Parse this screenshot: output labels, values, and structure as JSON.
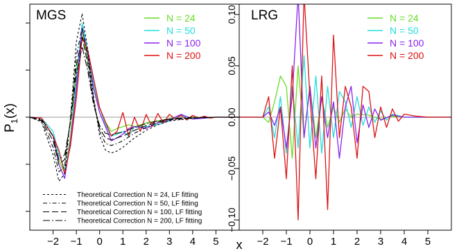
{
  "figure": {
    "ylabel": "P",
    "ylabel_sub": "1",
    "ylabel_tail": "(x)",
    "xlabel": "x"
  },
  "colors": {
    "N24": "#66dd22",
    "N50": "#22dddd",
    "N100": "#8822ee",
    "N200": "#dd1111",
    "theory": "#000000",
    "zero_line": "#999999"
  },
  "chart_data": [
    {
      "type": "line",
      "panel_label": "MGS",
      "xlim": [
        -3,
        6
      ],
      "x_ticks": [
        -2,
        -1,
        0,
        1,
        2,
        3,
        4,
        5
      ],
      "x_tick_labels": [
        "-2",
        "-1",
        "0",
        "1",
        "2",
        "3",
        "4",
        "5"
      ],
      "grid": false,
      "legend_position": "top-right",
      "series": [
        {
          "name": "N = 24",
          "color_key": "N24",
          "x": [
            -3.0,
            -2.5,
            -2.0,
            -1.75,
            -1.5,
            -1.25,
            -1.0,
            -0.75,
            -0.5,
            -0.25,
            0.0,
            0.25,
            0.5,
            0.75,
            1.0,
            1.25,
            1.5,
            2.0,
            2.5,
            3.0,
            3.5,
            4.0,
            5.0,
            6.0
          ],
          "y": [
            0.0,
            -0.001,
            -0.02,
            -0.045,
            -0.06,
            -0.02,
            0.05,
            0.09,
            0.06,
            0.03,
            0.01,
            -0.005,
            -0.015,
            -0.012,
            -0.01,
            -0.008,
            -0.01,
            -0.006,
            -0.004,
            -0.002,
            0.002,
            -0.001,
            0.0,
            0.0
          ]
        },
        {
          "name": "N = 50",
          "color_key": "N50",
          "x": [
            -3.0,
            -2.5,
            -2.0,
            -1.75,
            -1.5,
            -1.25,
            -1.0,
            -0.75,
            -0.5,
            -0.25,
            0.0,
            0.25,
            0.5,
            0.75,
            1.0,
            1.25,
            1.5,
            2.0,
            2.5,
            3.0,
            3.5,
            4.0,
            5.0,
            6.0
          ],
          "y": [
            0.0,
            -0.001,
            -0.015,
            -0.04,
            -0.055,
            -0.03,
            0.04,
            0.1,
            0.07,
            0.035,
            0.01,
            -0.008,
            -0.02,
            -0.018,
            -0.015,
            -0.02,
            -0.01,
            -0.01,
            -0.008,
            -0.004,
            0.002,
            -0.002,
            0.0,
            0.0
          ]
        },
        {
          "name": "N = 100",
          "color_key": "N100",
          "x": [
            -3.0,
            -2.5,
            -2.0,
            -1.75,
            -1.5,
            -1.25,
            -1.0,
            -0.75,
            -0.5,
            -0.25,
            0.0,
            0.25,
            0.5,
            0.75,
            1.0,
            1.25,
            1.5,
            2.0,
            2.5,
            3.0,
            3.5,
            4.0,
            5.0,
            6.0
          ],
          "y": [
            0.0,
            -0.001,
            -0.02,
            -0.05,
            -0.065,
            -0.025,
            0.03,
            0.095,
            0.065,
            0.03,
            0.005,
            -0.01,
            -0.025,
            -0.022,
            -0.018,
            -0.012,
            -0.01,
            -0.012,
            -0.006,
            -0.003,
            0.003,
            -0.002,
            0.0,
            0.0
          ]
        },
        {
          "name": "N = 200",
          "color_key": "N200",
          "x": [
            -3.0,
            -2.5,
            -2.0,
            -1.75,
            -1.5,
            -1.25,
            -1.0,
            -0.75,
            -0.5,
            -0.25,
            0.0,
            0.25,
            0.5,
            0.75,
            1.0,
            1.25,
            1.5,
            1.75,
            2.0,
            2.25,
            2.5,
            2.75,
            3.0,
            3.25,
            3.5,
            3.75,
            4.0,
            4.25,
            4.5,
            4.75,
            5.0,
            6.0
          ],
          "y": [
            0.0,
            -0.001,
            -0.02,
            -0.035,
            -0.06,
            -0.03,
            0.02,
            0.085,
            0.07,
            0.04,
            0.01,
            -0.005,
            -0.02,
            -0.015,
            0.005,
            -0.02,
            0.0,
            -0.015,
            0.003,
            -0.01,
            0.004,
            -0.006,
            0.003,
            -0.002,
            0.002,
            -0.003,
            0.002,
            -0.001,
            0.001,
            -0.001,
            0.0,
            0.0
          ]
        },
        {
          "name": "Theoretical Correction N = 24, LF fitting",
          "color_key": "theory",
          "dash": "short",
          "x": [
            -3.0,
            -2.5,
            -2.0,
            -1.75,
            -1.5,
            -1.25,
            -1.0,
            -0.75,
            -0.5,
            -0.25,
            0.0,
            0.25,
            0.5,
            0.75,
            1.0,
            1.5,
            2.0,
            2.5,
            3.0,
            4.0,
            5.0,
            6.0
          ],
          "y": [
            0.0,
            -0.005,
            -0.04,
            -0.068,
            -0.06,
            0.0,
            0.08,
            0.11,
            0.07,
            0.02,
            -0.02,
            -0.035,
            -0.038,
            -0.036,
            -0.032,
            -0.022,
            -0.014,
            -0.008,
            -0.004,
            -0.001,
            0.0,
            0.0
          ]
        },
        {
          "name": "Theoretical Correction N = 50, LF fitting",
          "color_key": "theory",
          "dash": "dashdot",
          "x": [
            -3.0,
            -2.5,
            -2.0,
            -1.75,
            -1.5,
            -1.25,
            -1.0,
            -0.75,
            -0.5,
            -0.25,
            0.0,
            0.25,
            0.5,
            0.75,
            1.0,
            1.5,
            2.0,
            2.5,
            3.0,
            4.0,
            5.0,
            6.0
          ],
          "y": [
            0.0,
            -0.004,
            -0.032,
            -0.058,
            -0.052,
            -0.002,
            0.065,
            0.095,
            0.062,
            0.018,
            -0.015,
            -0.028,
            -0.03,
            -0.028,
            -0.025,
            -0.017,
            -0.011,
            -0.006,
            -0.003,
            -0.001,
            0.0,
            0.0
          ]
        },
        {
          "name": "Theoretical Correction N = 100, LF fitting",
          "color_key": "theory",
          "dash": "long",
          "x": [
            -3.0,
            -2.5,
            -2.0,
            -1.75,
            -1.5,
            -1.25,
            -1.0,
            -0.75,
            -0.5,
            -0.25,
            0.0,
            0.25,
            0.5,
            0.75,
            1.0,
            1.5,
            2.0,
            2.5,
            3.0,
            4.0,
            5.0,
            6.0
          ],
          "y": [
            0.0,
            -0.003,
            -0.025,
            -0.05,
            -0.045,
            -0.004,
            0.055,
            0.085,
            0.055,
            0.015,
            -0.012,
            -0.022,
            -0.024,
            -0.022,
            -0.02,
            -0.014,
            -0.009,
            -0.005,
            -0.002,
            -0.001,
            0.0,
            0.0
          ]
        },
        {
          "name": "Theoretical Correction N = 200, LF fitting",
          "color_key": "theory",
          "dash": "longdashdot",
          "x": [
            -3.0,
            -2.5,
            -2.0,
            -1.75,
            -1.5,
            -1.25,
            -1.0,
            -0.75,
            -0.5,
            -0.25,
            0.0,
            0.25,
            0.5,
            0.75,
            1.0,
            1.5,
            2.0,
            2.5,
            3.0,
            4.0,
            5.0,
            6.0
          ],
          "y": [
            0.0,
            -0.002,
            -0.02,
            -0.045,
            -0.04,
            -0.005,
            0.045,
            0.075,
            0.048,
            0.012,
            -0.009,
            -0.017,
            -0.019,
            -0.017,
            -0.016,
            -0.011,
            -0.007,
            -0.004,
            -0.002,
            0.0,
            0.0,
            0.0
          ]
        }
      ],
      "ylim": [
        -0.12,
        0.12
      ]
    },
    {
      "type": "line",
      "panel_label": "LRG",
      "xlim": [
        -3,
        6
      ],
      "ylim": [
        -0.11,
        0.11
      ],
      "x_ticks": [
        -2,
        -1,
        0,
        1,
        2,
        3,
        4,
        5
      ],
      "x_tick_labels": [
        "-2",
        "-1",
        "0",
        "1",
        "2",
        "3",
        "4",
        "5"
      ],
      "y_ticks": [
        -0.1,
        -0.05,
        0.0,
        0.05,
        0.1
      ],
      "y_tick_labels": [
        "-0.10",
        "-0.05",
        "0.00",
        "0.05",
        "0.10"
      ],
      "grid": false,
      "legend_position": "top-right",
      "series": [
        {
          "name": "N = 24",
          "color_key": "N24",
          "x": [
            -3.0,
            -2.0,
            -1.75,
            -1.5,
            -1.25,
            -1.0,
            -0.75,
            -0.5,
            -0.25,
            0.0,
            0.25,
            0.5,
            0.75,
            1.0,
            1.25,
            1.5,
            1.75,
            2.0,
            2.5,
            3.0,
            3.5,
            4.0,
            5.0,
            6.0
          ],
          "y": [
            0.0,
            0.0,
            -0.005,
            0.015,
            0.04,
            0.03,
            -0.04,
            0.05,
            -0.02,
            0.03,
            -0.02,
            0.02,
            -0.01,
            0.01,
            -0.005,
            0.008,
            0.0,
            0.003,
            0.002,
            -0.002,
            0.001,
            0.0,
            0.0,
            0.0
          ]
        },
        {
          "name": "N = 50",
          "color_key": "N50",
          "x": [
            -3.0,
            -2.0,
            -1.75,
            -1.5,
            -1.25,
            -1.0,
            -0.75,
            -0.5,
            -0.25,
            0.0,
            0.25,
            0.5,
            0.75,
            1.0,
            1.25,
            1.5,
            1.75,
            2.0,
            2.25,
            2.5,
            2.75,
            3.0,
            3.25,
            3.5,
            4.0,
            5.0,
            6.0
          ],
          "y": [
            0.0,
            0.0,
            0.01,
            -0.02,
            0.02,
            -0.035,
            0.03,
            -0.03,
            0.06,
            -0.03,
            0.04,
            -0.035,
            0.03,
            -0.02,
            0.025,
            0.015,
            -0.01,
            0.02,
            -0.008,
            0.01,
            -0.005,
            0.006,
            -0.003,
            0.003,
            0.0,
            0.0,
            0.0
          ]
        },
        {
          "name": "N = 100",
          "color_key": "N100",
          "x": [
            -3.0,
            -2.0,
            -1.75,
            -1.5,
            -1.25,
            -1.0,
            -0.75,
            -0.5,
            -0.25,
            0.0,
            0.25,
            0.5,
            0.75,
            1.0,
            1.25,
            1.5,
            1.75,
            2.0,
            2.25,
            2.5,
            2.75,
            3.0,
            3.5,
            4.0,
            5.0,
            6.0
          ],
          "y": [
            0.0,
            0.0,
            0.005,
            -0.008,
            0.01,
            -0.03,
            0.02,
            0.12,
            -0.02,
            0.03,
            -0.03,
            0.02,
            -0.02,
            0.015,
            -0.04,
            0.01,
            0.03,
            -0.025,
            0.012,
            -0.01,
            0.008,
            -0.003,
            0.002,
            0.0,
            0.0,
            0.0
          ]
        },
        {
          "name": "N = 200",
          "color_key": "N200",
          "x": [
            -3.0,
            -2.0,
            -1.75,
            -1.5,
            -1.25,
            -1.0,
            -0.75,
            -0.5,
            -0.25,
            0.0,
            0.25,
            0.5,
            0.75,
            1.0,
            1.25,
            1.5,
            1.75,
            2.0,
            2.25,
            2.5,
            2.75,
            3.0,
            3.25,
            3.5,
            3.75,
            4.0,
            4.5,
            5.0,
            6.0
          ],
          "y": [
            0.0,
            0.0,
            0.02,
            -0.04,
            0.01,
            -0.06,
            0.05,
            -0.1,
            0.12,
            0.02,
            -0.06,
            0.04,
            -0.09,
            0.08,
            -0.02,
            0.03,
            0.01,
            -0.04,
            0.03,
            0.025,
            -0.02,
            0.01,
            -0.01,
            0.008,
            -0.004,
            0.003,
            0.001,
            0.0,
            0.0
          ]
        }
      ]
    }
  ]
}
